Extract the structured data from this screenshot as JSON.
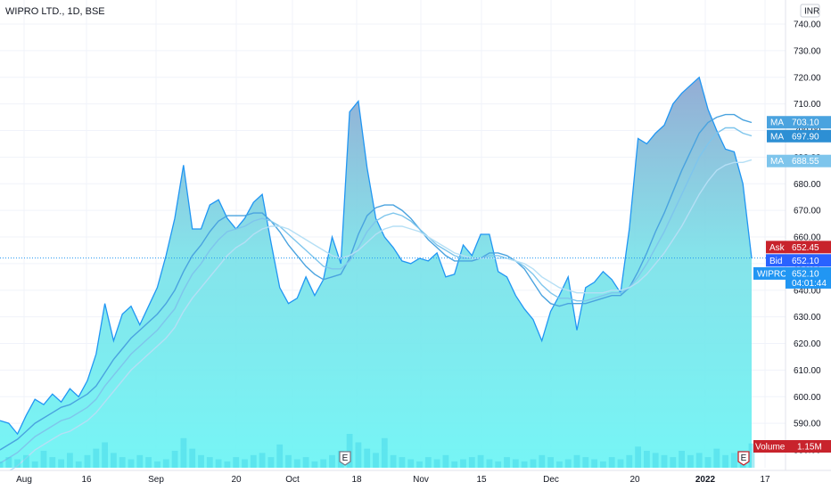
{
  "header": {
    "title": "WIPRO LTD., 1D, BSE"
  },
  "currency_badge": "INR",
  "chart_data": {
    "type": "area",
    "title": "WIPRO LTD., 1D, BSE",
    "ylim": [
      580,
      745
    ],
    "y_ticks": [
      "740.00",
      "730.00",
      "720.00",
      "710.00",
      "700.00",
      "690.00",
      "680.00",
      "670.00",
      "660.00",
      "650.00",
      "640.00",
      "630.00",
      "620.00",
      "610.00",
      "600.00",
      "590.00",
      "580.00"
    ],
    "x_ticks": [
      "Aug",
      "16",
      "Sep",
      "20",
      "Oct",
      "18",
      "Nov",
      "15",
      "Dec",
      "20",
      "2022",
      "17"
    ],
    "price": [
      591,
      590,
      586,
      593,
      599,
      597,
      601,
      598,
      603,
      600,
      606,
      616,
      635,
      621,
      631,
      634,
      627,
      634,
      641,
      653,
      667,
      687,
      663,
      663,
      672,
      674,
      667,
      663,
      667,
      673,
      676,
      658,
      641,
      635,
      637,
      645,
      638,
      644,
      660,
      650,
      707,
      711,
      686,
      667,
      660,
      656,
      651,
      650,
      652,
      651,
      654,
      645,
      646,
      657,
      653,
      661,
      661,
      647,
      645,
      638,
      633,
      629,
      621,
      632,
      638,
      645,
      625,
      641,
      643,
      647,
      644,
      639,
      663,
      697,
      695,
      699,
      702,
      710,
      714,
      717,
      720,
      708,
      700,
      693,
      692,
      680,
      652
    ],
    "ma_series": [
      {
        "values": [
          580,
          582,
          584,
          587,
          590,
          592,
          594,
          596,
          597,
          599,
          601,
          604,
          609,
          614,
          618,
          622,
          625,
          628,
          631,
          635,
          640,
          647,
          653,
          657,
          662,
          666,
          668,
          668,
          668,
          669,
          669,
          666,
          662,
          657,
          653,
          649,
          646,
          644,
          645,
          646,
          652,
          661,
          668,
          671,
          672,
          672,
          670,
          667,
          663,
          659,
          656,
          653,
          651,
          651,
          651,
          652,
          654,
          654,
          653,
          651,
          648,
          643,
          638,
          635,
          634,
          635,
          635,
          635,
          636,
          637,
          638,
          638,
          641,
          647,
          654,
          662,
          669,
          677,
          685,
          692,
          699,
          703,
          705,
          706,
          706,
          704,
          703
        ]
      },
      {
        "values": [
          575,
          577,
          579,
          582,
          585,
          587,
          589,
          591,
          592,
          594,
          596,
          599,
          604,
          608,
          612,
          616,
          619,
          622,
          625,
          629,
          633,
          640,
          646,
          650,
          655,
          659,
          662,
          663,
          664,
          666,
          667,
          666,
          664,
          661,
          658,
          655,
          652,
          649,
          648,
          648,
          651,
          656,
          662,
          666,
          668,
          669,
          668,
          666,
          663,
          660,
          657,
          655,
          653,
          652,
          652,
          652,
          653,
          653,
          652,
          651,
          649,
          646,
          642,
          639,
          637,
          637,
          636,
          636,
          637,
          638,
          639,
          639,
          641,
          645,
          650,
          656,
          662,
          669,
          676,
          683,
          690,
          695,
          699,
          701,
          701,
          699,
          698
        ]
      },
      {
        "values": [
          570,
          572,
          574,
          577,
          580,
          582,
          584,
          586,
          587,
          589,
          591,
          594,
          598,
          602,
          606,
          610,
          613,
          616,
          619,
          622,
          626,
          632,
          637,
          641,
          645,
          649,
          653,
          656,
          658,
          661,
          663,
          664,
          664,
          663,
          661,
          659,
          657,
          655,
          653,
          652,
          653,
          655,
          658,
          661,
          663,
          664,
          664,
          663,
          662,
          660,
          658,
          656,
          654,
          653,
          652,
          652,
          652,
          652,
          652,
          651,
          650,
          648,
          645,
          643,
          641,
          640,
          639,
          639,
          639,
          639,
          640,
          640,
          641,
          643,
          646,
          650,
          654,
          659,
          664,
          670,
          676,
          681,
          685,
          687,
          688,
          688,
          689
        ]
      }
    ],
    "volume": [
      0.3,
      0.5,
      0.4,
      0.6,
      0.3,
      0.8,
      0.5,
      0.4,
      0.7,
      0.3,
      0.6,
      0.9,
      1.2,
      0.7,
      0.5,
      0.4,
      0.6,
      0.5,
      0.3,
      0.4,
      0.8,
      1.4,
      0.9,
      0.6,
      0.5,
      0.4,
      0.3,
      0.5,
      0.4,
      0.6,
      0.7,
      0.5,
      1.1,
      0.6,
      0.4,
      0.5,
      0.3,
      0.4,
      0.6,
      0.8,
      1.6,
      1.2,
      0.9,
      0.7,
      1.4,
      0.6,
      0.5,
      0.4,
      0.3,
      0.5,
      0.4,
      0.6,
      0.3,
      0.4,
      0.5,
      0.6,
      0.4,
      0.3,
      0.5,
      0.4,
      0.3,
      0.4,
      0.6,
      0.5,
      0.3,
      0.4,
      0.6,
      0.5,
      0.4,
      0.3,
      0.5,
      0.4,
      0.6,
      1.0,
      0.8,
      0.7,
      0.6,
      0.5,
      0.8,
      0.6,
      0.7,
      0.5,
      0.9,
      0.6,
      0.7,
      0.8,
      1.15
    ],
    "tags": {
      "ma1": {
        "label": "MA",
        "value": "703.10",
        "price": 703.1
      },
      "ma2": {
        "label": "MA",
        "value": "697.90",
        "price": 697.9
      },
      "ma3": {
        "label": "MA",
        "value": "688.55",
        "price": 688.55
      },
      "ask": {
        "label": "Ask",
        "value": "652.45",
        "price": 652.45
      },
      "bid": {
        "label": "Bid",
        "value": "652.10",
        "price": 652.1
      },
      "last": {
        "label": "WIPRO",
        "value": "652.10",
        "countdown": "04:01:44",
        "price": 652.1
      },
      "volume": {
        "label": "Volume",
        "value": "1.15M"
      }
    },
    "event_markers": [
      "E",
      "E"
    ],
    "colors": {
      "line": "#2196f3",
      "fill_top": "#a5b8d6",
      "fill_bottom": "#6ff5f5",
      "ma1": "#4aa3df",
      "ma2": "#7ec5ec",
      "ma3": "#b5dff5",
      "ask": "#c8232c",
      "bid": "#2962ff",
      "last": "#2196f3",
      "volume_bar": "#3ed3e6"
    }
  }
}
